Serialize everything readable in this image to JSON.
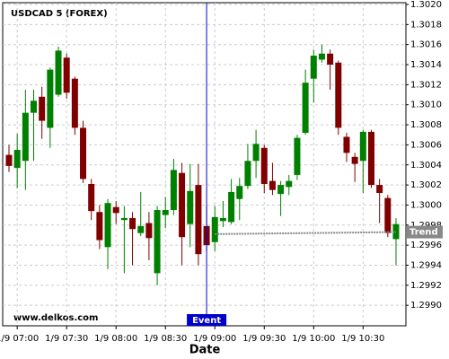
{
  "chart_data": {
    "type": "candlestick",
    "title": "USDCAD 5 (FOREX)",
    "watermark": "www.delkos.com",
    "x_label": "Date",
    "categories": [
      null,
      "1/9 07:00",
      null,
      null,
      null,
      null,
      null,
      "1/9 07:30",
      null,
      null,
      null,
      null,
      null,
      "1/9 08:00",
      null,
      null,
      null,
      null,
      null,
      "1/9 08:30",
      null,
      null,
      null,
      null,
      null,
      "1/9 09:00",
      null,
      null,
      null,
      null,
      null,
      "1/9 09:30",
      null,
      null,
      null,
      null,
      null,
      "1/9 10:00",
      null,
      null,
      null,
      null,
      null,
      "1/9 10:30",
      null,
      null,
      null,
      null
    ],
    "open": [
      1.3005,
      1.30037,
      1.30044,
      1.30092,
      1.30108,
      1.30077,
      1.3011,
      1.30147,
      1.30126,
      1.30077,
      1.30021,
      1.29993,
      1.29958,
      1.29998,
      1.29985,
      1.29987,
      1.29972,
      1.29982,
      1.29932,
      1.2999,
      1.29995,
      1.30032,
      1.29981,
      1.3002,
      1.29979,
      1.29963,
      1.29984,
      1.29983,
      1.30006,
      1.30019,
      1.30044,
      1.30057,
      1.30024,
      1.30011,
      1.30018,
      1.3003,
      1.30072,
      1.30126,
      1.30145,
      1.30151,
      1.30142,
      1.30068,
      1.30048,
      1.30044,
      1.30073,
      1.3002,
      1.30007,
      1.29966
    ],
    "high": [
      1.3006,
      1.30071,
      1.30115,
      1.30115,
      1.30118,
      1.30137,
      1.30158,
      1.30151,
      1.30128,
      1.30084,
      1.30026,
      1.3,
      1.30006,
      1.30004,
      1.29999,
      1.29993,
      1.30013,
      1.29993,
      1.29999,
      1.30008,
      1.30046,
      1.30042,
      1.30041,
      1.30041,
      1.29999,
      1.29999,
      1.30004,
      1.30026,
      1.30027,
      1.30061,
      1.30075,
      1.3006,
      1.30042,
      1.30024,
      1.3003,
      1.3007,
      1.30135,
      1.30155,
      1.3016,
      1.30155,
      1.30144,
      1.30072,
      1.30052,
      1.30075,
      1.30075,
      1.30026,
      1.3001,
      1.29987
    ],
    "low": [
      1.30033,
      1.30017,
      1.30015,
      1.30044,
      1.30066,
      1.30057,
      1.30108,
      1.30106,
      1.3007,
      1.30022,
      1.29985,
      1.29956,
      1.29936,
      1.29981,
      1.29932,
      1.2994,
      1.29969,
      1.29945,
      1.2992,
      1.29977,
      1.2999,
      1.2994,
      1.29958,
      1.2994,
      1.29954,
      1.29954,
      1.29978,
      1.29981,
      1.29985,
      1.30016,
      1.30027,
      1.30012,
      1.3001,
      1.29989,
      1.3001,
      1.30025,
      1.3007,
      1.30102,
      1.30142,
      1.30115,
      1.3007,
      1.30043,
      1.30023,
      1.30012,
      1.30017,
      1.29982,
      1.29968,
      1.2994
    ],
    "close": [
      1.30039,
      1.30055,
      1.30092,
      1.30104,
      1.30084,
      1.30135,
      1.30154,
      1.30112,
      1.30077,
      1.30026,
      1.29994,
      1.29965,
      1.30002,
      1.29992,
      1.29987,
      1.29976,
      1.29979,
      1.29967,
      1.29995,
      1.29995,
      1.30035,
      1.29968,
      1.30014,
      1.29951,
      1.2996,
      1.29988,
      1.29987,
      1.30013,
      1.30019,
      1.30044,
      1.30061,
      1.30021,
      1.30015,
      1.3002,
      1.30024,
      1.30067,
      1.30122,
      1.30149,
      1.30151,
      1.3014,
      1.30077,
      1.30052,
      1.30041,
      1.30073,
      1.3002,
      1.30012,
      1.29972,
      1.29981
    ],
    "up_color": "#008000",
    "down_color": "#800000",
    "ylim": [
      1.2988,
      1.302
    ],
    "yticks": [
      {
        "value": 1.299,
        "label": "1.2990"
      },
      {
        "value": 1.2992,
        "label": "1.2992"
      },
      {
        "value": 1.2994,
        "label": "1.2994"
      },
      {
        "value": 1.2996,
        "label": "1.2996"
      },
      {
        "value": 1.2998,
        "label": "1.2998"
      },
      {
        "value": 1.3,
        "label": "1.3000"
      },
      {
        "value": 1.3002,
        "label": "1.3002"
      },
      {
        "value": 1.3004,
        "label": "1.3004"
      },
      {
        "value": 1.3006,
        "label": "1.3006"
      },
      {
        "value": 1.3008,
        "label": "1.3008"
      },
      {
        "value": 1.301,
        "label": "1.3010"
      },
      {
        "value": 1.3012,
        "label": "1.3012"
      },
      {
        "value": 1.3014,
        "label": "1.3014"
      },
      {
        "value": 1.3016,
        "label": "1.3016"
      },
      {
        "value": 1.3018,
        "label": "1.3018"
      },
      {
        "value": 1.302,
        "label": "1.3020"
      }
    ],
    "grid": true,
    "event": {
      "label": "Event",
      "index": 24,
      "color": "#0000cc"
    },
    "trend": {
      "label": "Trend",
      "start_index": 25,
      "end_index": 47,
      "values": [
        1.29971,
        1.29973
      ],
      "color": "#888888"
    }
  }
}
